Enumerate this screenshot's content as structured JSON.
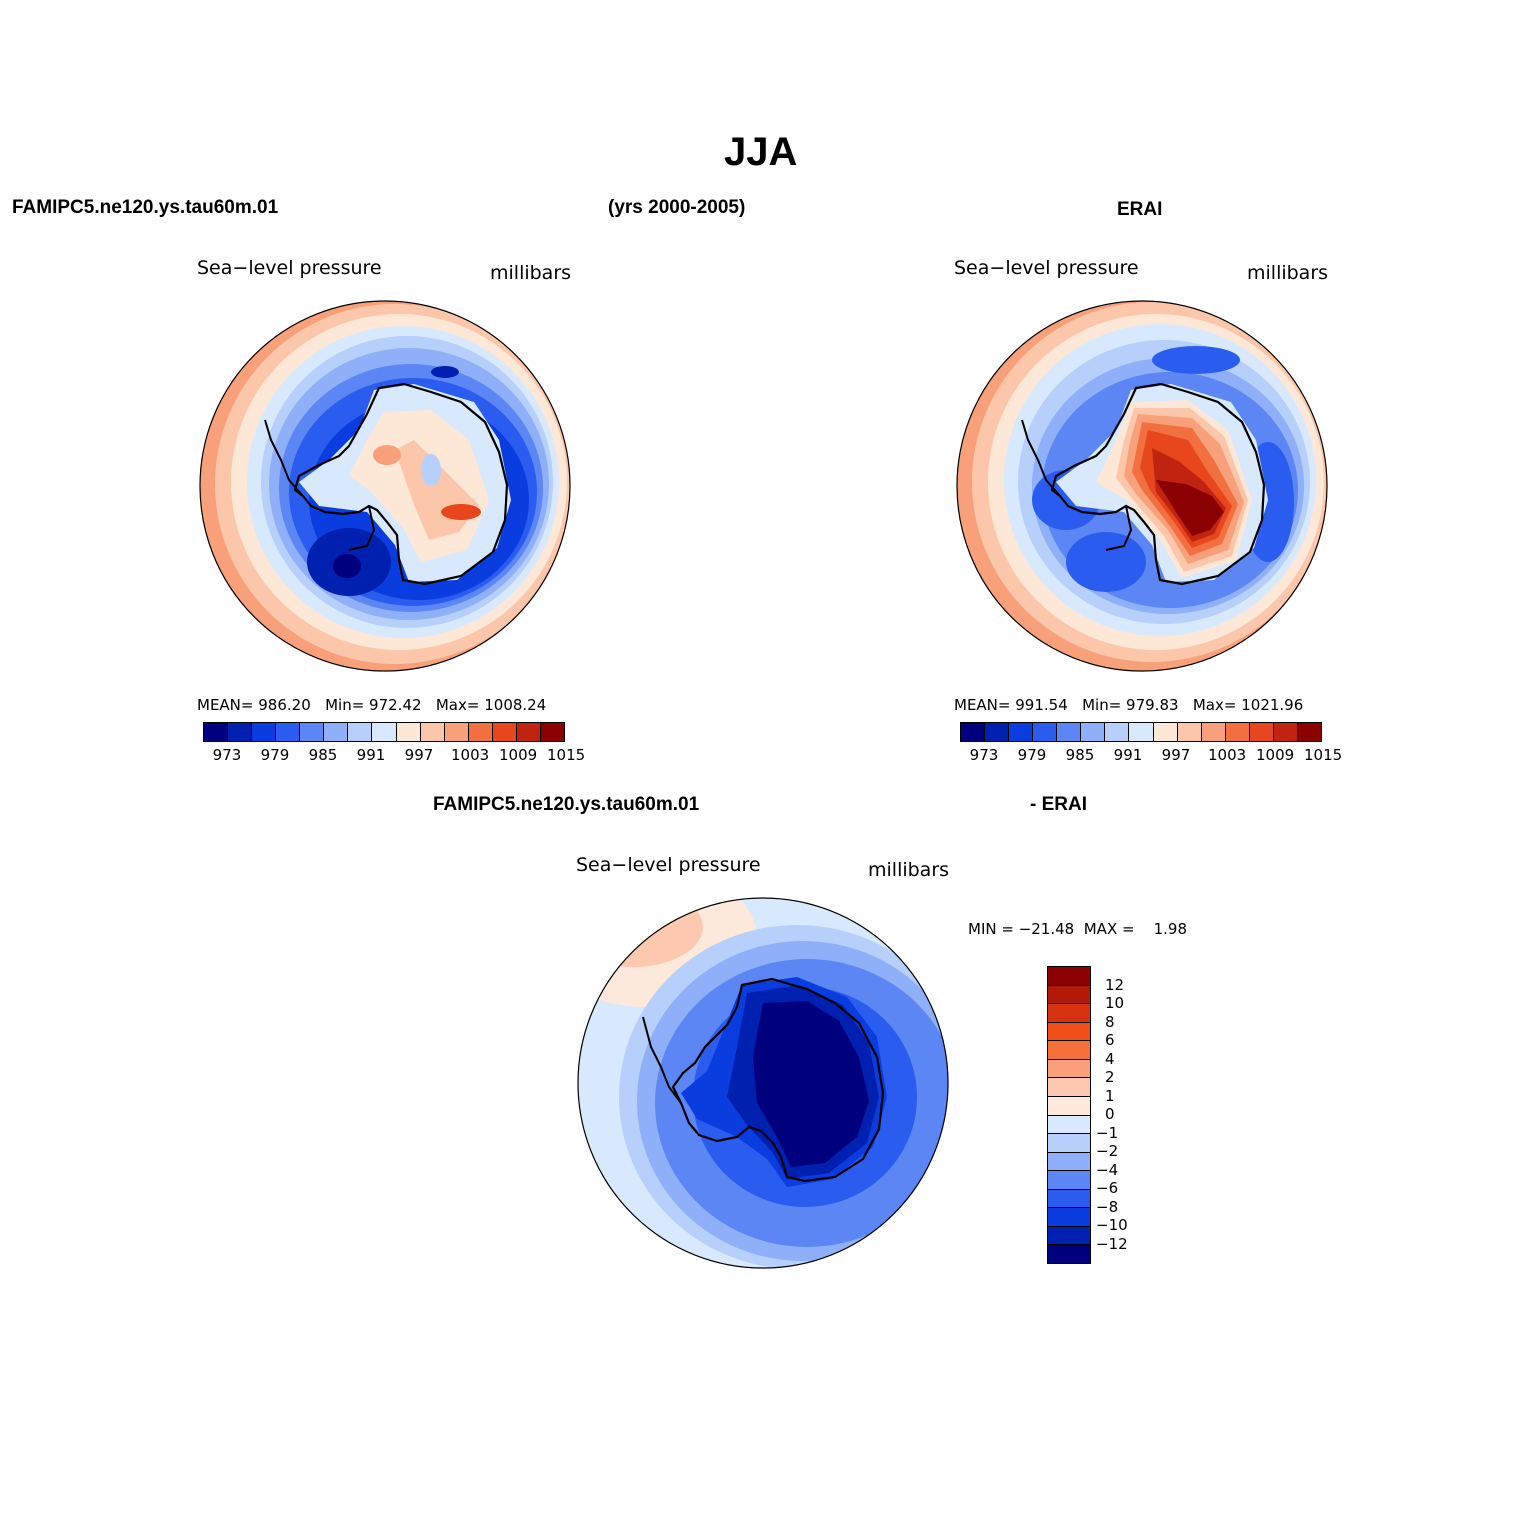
{
  "figure": {
    "title": "JJA",
    "model_label": "FAMIPC5.ne120.ys.tau60m.01",
    "years_label": "(yrs 2000-2005)",
    "obs_label": "ERAI",
    "diff_model_label": "FAMIPC5.ne120.ys.tau60m.01",
    "diff_obs_label": "- ERAI"
  },
  "panels": {
    "model": {
      "variable": "Sea−level pressure",
      "units": "millibars",
      "mean_label": "MEAN=",
      "mean": "986.20",
      "min_label": "Min=",
      "min": "972.42",
      "max_label": "Max=",
      "max": "1008.24"
    },
    "obs": {
      "variable": "Sea−level pressure",
      "units": "millibars",
      "mean_label": "MEAN=",
      "mean": "991.54",
      "min_label": "Min=",
      "min": "979.83",
      "max_label": "Max=",
      "max": "1021.96"
    },
    "diff": {
      "variable": "Sea−level pressure",
      "units": "millibars",
      "minmax_text": "MIN = −21.48  MAX =    1.98"
    }
  },
  "colorbars": {
    "abs_colors": [
      "#00007f",
      "#0020b0",
      "#0a3de0",
      "#2b5cf0",
      "#5b86f4",
      "#8fb0f8",
      "#b6cffb",
      "#d8e8fd",
      "#fde8d8",
      "#fcc6aa",
      "#f7a07a",
      "#f26f40",
      "#e8461c",
      "#c02410",
      "#8b0000"
    ],
    "abs_ticks": [
      "973",
      "979",
      "985",
      "991",
      "997",
      "1003",
      "1009",
      "1015"
    ],
    "diff_colors": [
      "#8b0000",
      "#b21a08",
      "#d83210",
      "#f24e1a",
      "#f6713a",
      "#f9a07a",
      "#fcc8b0",
      "#fde9dc",
      "#d8e8fd",
      "#b6cffb",
      "#8fb0f8",
      "#5b86f4",
      "#2b5cf0",
      "#0a3de0",
      "#0020b0",
      "#00007f"
    ],
    "diff_ticks": [
      "12",
      "10",
      "8",
      "6",
      "4",
      "2",
      "1",
      "0",
      "−1",
      "−2",
      "−4",
      "−6",
      "−8",
      "−10",
      "−12"
    ]
  },
  "colors": {
    "map_border": "#000000",
    "coast": "#000000"
  }
}
